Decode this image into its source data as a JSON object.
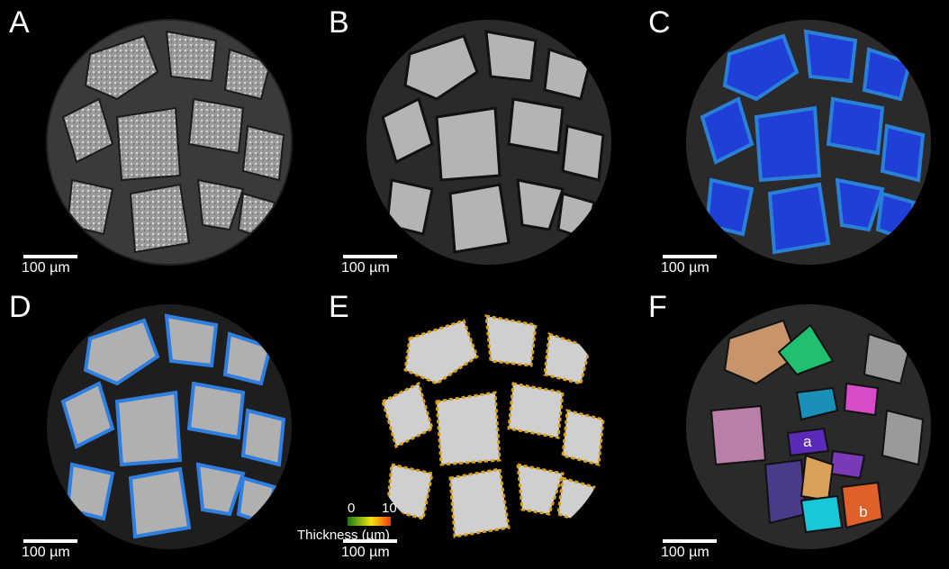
{
  "panels": [
    {
      "id": "A",
      "letter": "A",
      "style": "raw-ct",
      "scale_label": "100 µm"
    },
    {
      "id": "B",
      "letter": "B",
      "style": "filtered",
      "scale_label": "100 µm"
    },
    {
      "id": "C",
      "letter": "C",
      "style": "blue-overlay",
      "scale_label": "100 µm"
    },
    {
      "id": "D",
      "letter": "D",
      "style": "blue-rim-segmentation",
      "scale_label": "100 µm"
    },
    {
      "id": "E",
      "letter": "E",
      "style": "thickness-map",
      "scale_label": "100 µm"
    },
    {
      "id": "F",
      "letter": "F",
      "style": "labeled-grains",
      "scale_label": "100 µm"
    }
  ],
  "colorbar": {
    "min_label": "0",
    "max_label": "10",
    "title": "Thickness (µm)",
    "colors": [
      "#1a7a12",
      "#f3e312",
      "#f23b12"
    ]
  },
  "grain_labels": [
    "a",
    "b"
  ],
  "colors": {
    "background": "#000000",
    "grain_gray": "#bdbdbd",
    "matrix_gray": "#3a3a3a",
    "overlay_blue": "#1f3fd6",
    "rim_blue": "#2f7fe0"
  }
}
